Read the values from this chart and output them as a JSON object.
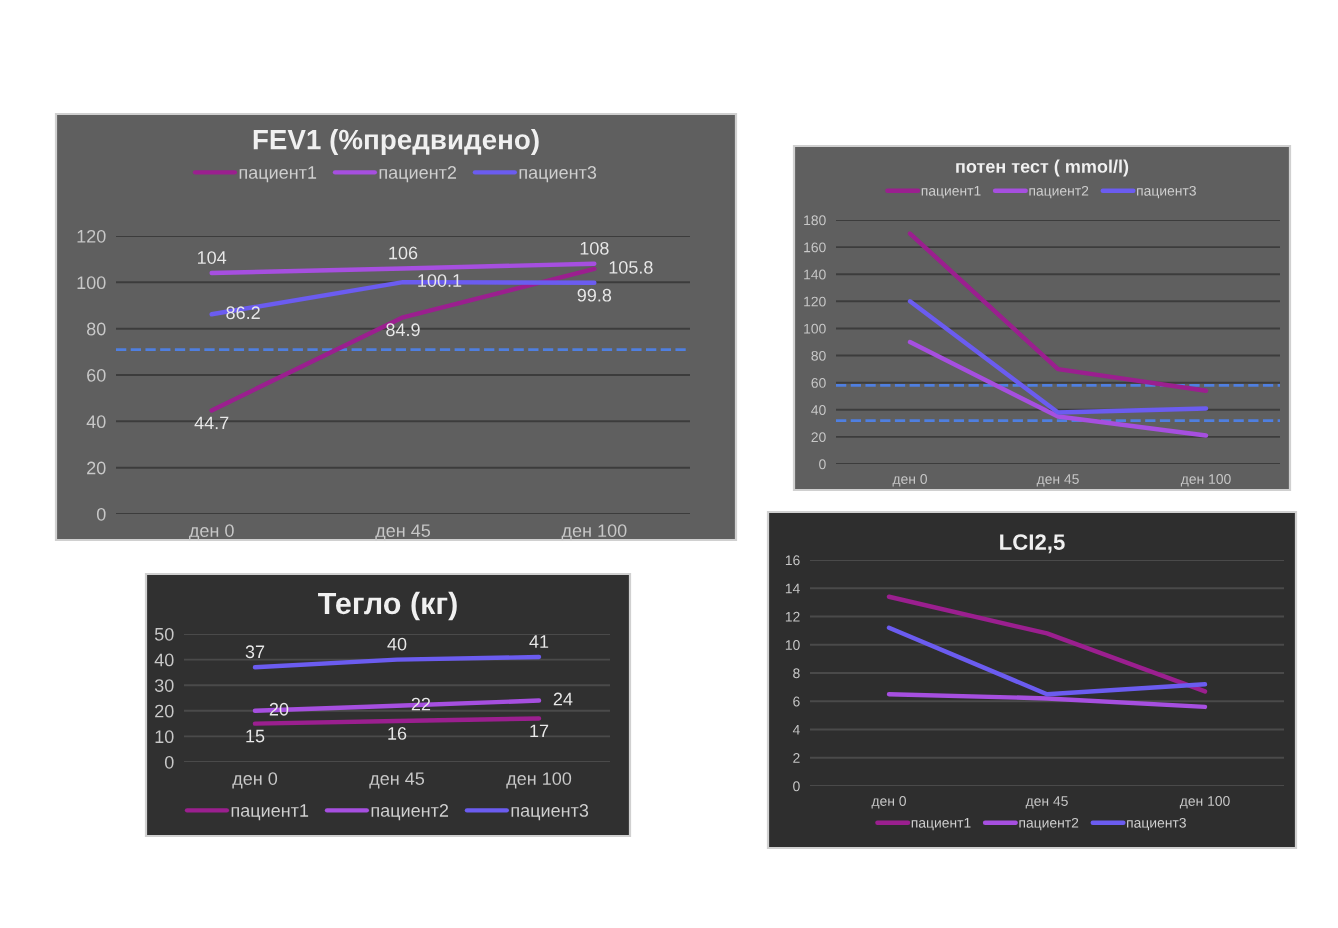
{
  "chart_data": [
    {
      "type": "line",
      "title": "FEV1 (%предвидено)",
      "categories": [
        "ден 0",
        "ден 45",
        "ден 100"
      ],
      "series": [
        {
          "name": "пациент1",
          "color": "#9b1f8f",
          "values": [
            44.7,
            84.9,
            105.8
          ]
        },
        {
          "name": "пациент2",
          "color": "#a64fe0",
          "values": [
            104,
            106,
            108
          ]
        },
        {
          "name": "пациент3",
          "color": "#6b5cf0",
          "values": [
            86.2,
            100.1,
            99.8
          ]
        }
      ],
      "ylim": [
        0,
        120
      ],
      "yticks": [
        0,
        20,
        40,
        60,
        80,
        100,
        120
      ],
      "grid": "y",
      "legend": "top",
      "data_labels": true,
      "ref_lines": [
        {
          "axis": "y",
          "value": 71,
          "color": "#4f7fe0",
          "line_style": "dashed"
        }
      ]
    },
    {
      "type": "line",
      "title": "потен тест ( mmol/l)",
      "categories": [
        "ден 0",
        "ден 45",
        "ден 100"
      ],
      "series": [
        {
          "name": "пациент1",
          "color": "#9b1f8f",
          "values": [
            170,
            70,
            54
          ]
        },
        {
          "name": "пациент2",
          "color": "#a64fe0",
          "values": [
            90,
            35,
            21
          ]
        },
        {
          "name": "пациент3",
          "color": "#6b5cf0",
          "values": [
            120,
            38,
            41
          ]
        }
      ],
      "ylim": [
        0,
        180
      ],
      "yticks": [
        0,
        20,
        40,
        60,
        80,
        100,
        120,
        140,
        160,
        180
      ],
      "grid": "y",
      "legend": "top",
      "ref_lines": [
        {
          "axis": "y",
          "value": 58,
          "color": "#4f7fe0",
          "line_style": "dashed"
        },
        {
          "axis": "y",
          "value": 32,
          "color": "#4f7fe0",
          "line_style": "dashed"
        }
      ]
    },
    {
      "type": "line",
      "title": "Тегло (кг)",
      "categories": [
        "ден 0",
        "ден 45",
        "ден 100"
      ],
      "series": [
        {
          "name": "пациент1",
          "color": "#9b1f8f",
          "values": [
            15,
            16,
            17
          ]
        },
        {
          "name": "пациент2",
          "color": "#a64fe0",
          "values": [
            20,
            22,
            24
          ]
        },
        {
          "name": "пациент3",
          "color": "#6b5cf0",
          "values": [
            37,
            40,
            41
          ]
        }
      ],
      "ylim": [
        0,
        50
      ],
      "yticks": [
        0,
        10,
        20,
        30,
        40,
        50
      ],
      "grid": "y",
      "legend": "bottom",
      "data_labels": true
    },
    {
      "type": "line",
      "title": "LCI2,5",
      "categories": [
        "ден 0",
        "ден 45",
        "ден 100"
      ],
      "series": [
        {
          "name": "пациент1",
          "color": "#9b1f8f",
          "values": [
            13.4,
            10.8,
            6.7
          ]
        },
        {
          "name": "пациент2",
          "color": "#a64fe0",
          "values": [
            6.5,
            6.2,
            5.6
          ]
        },
        {
          "name": "пациент3",
          "color": "#6b5cf0",
          "values": [
            11.2,
            6.5,
            7.2
          ]
        }
      ],
      "ylim": [
        0,
        16
      ],
      "yticks": [
        0,
        2,
        4,
        6,
        8,
        10,
        12,
        14,
        16
      ],
      "grid": "y",
      "legend": "bottom"
    }
  ]
}
